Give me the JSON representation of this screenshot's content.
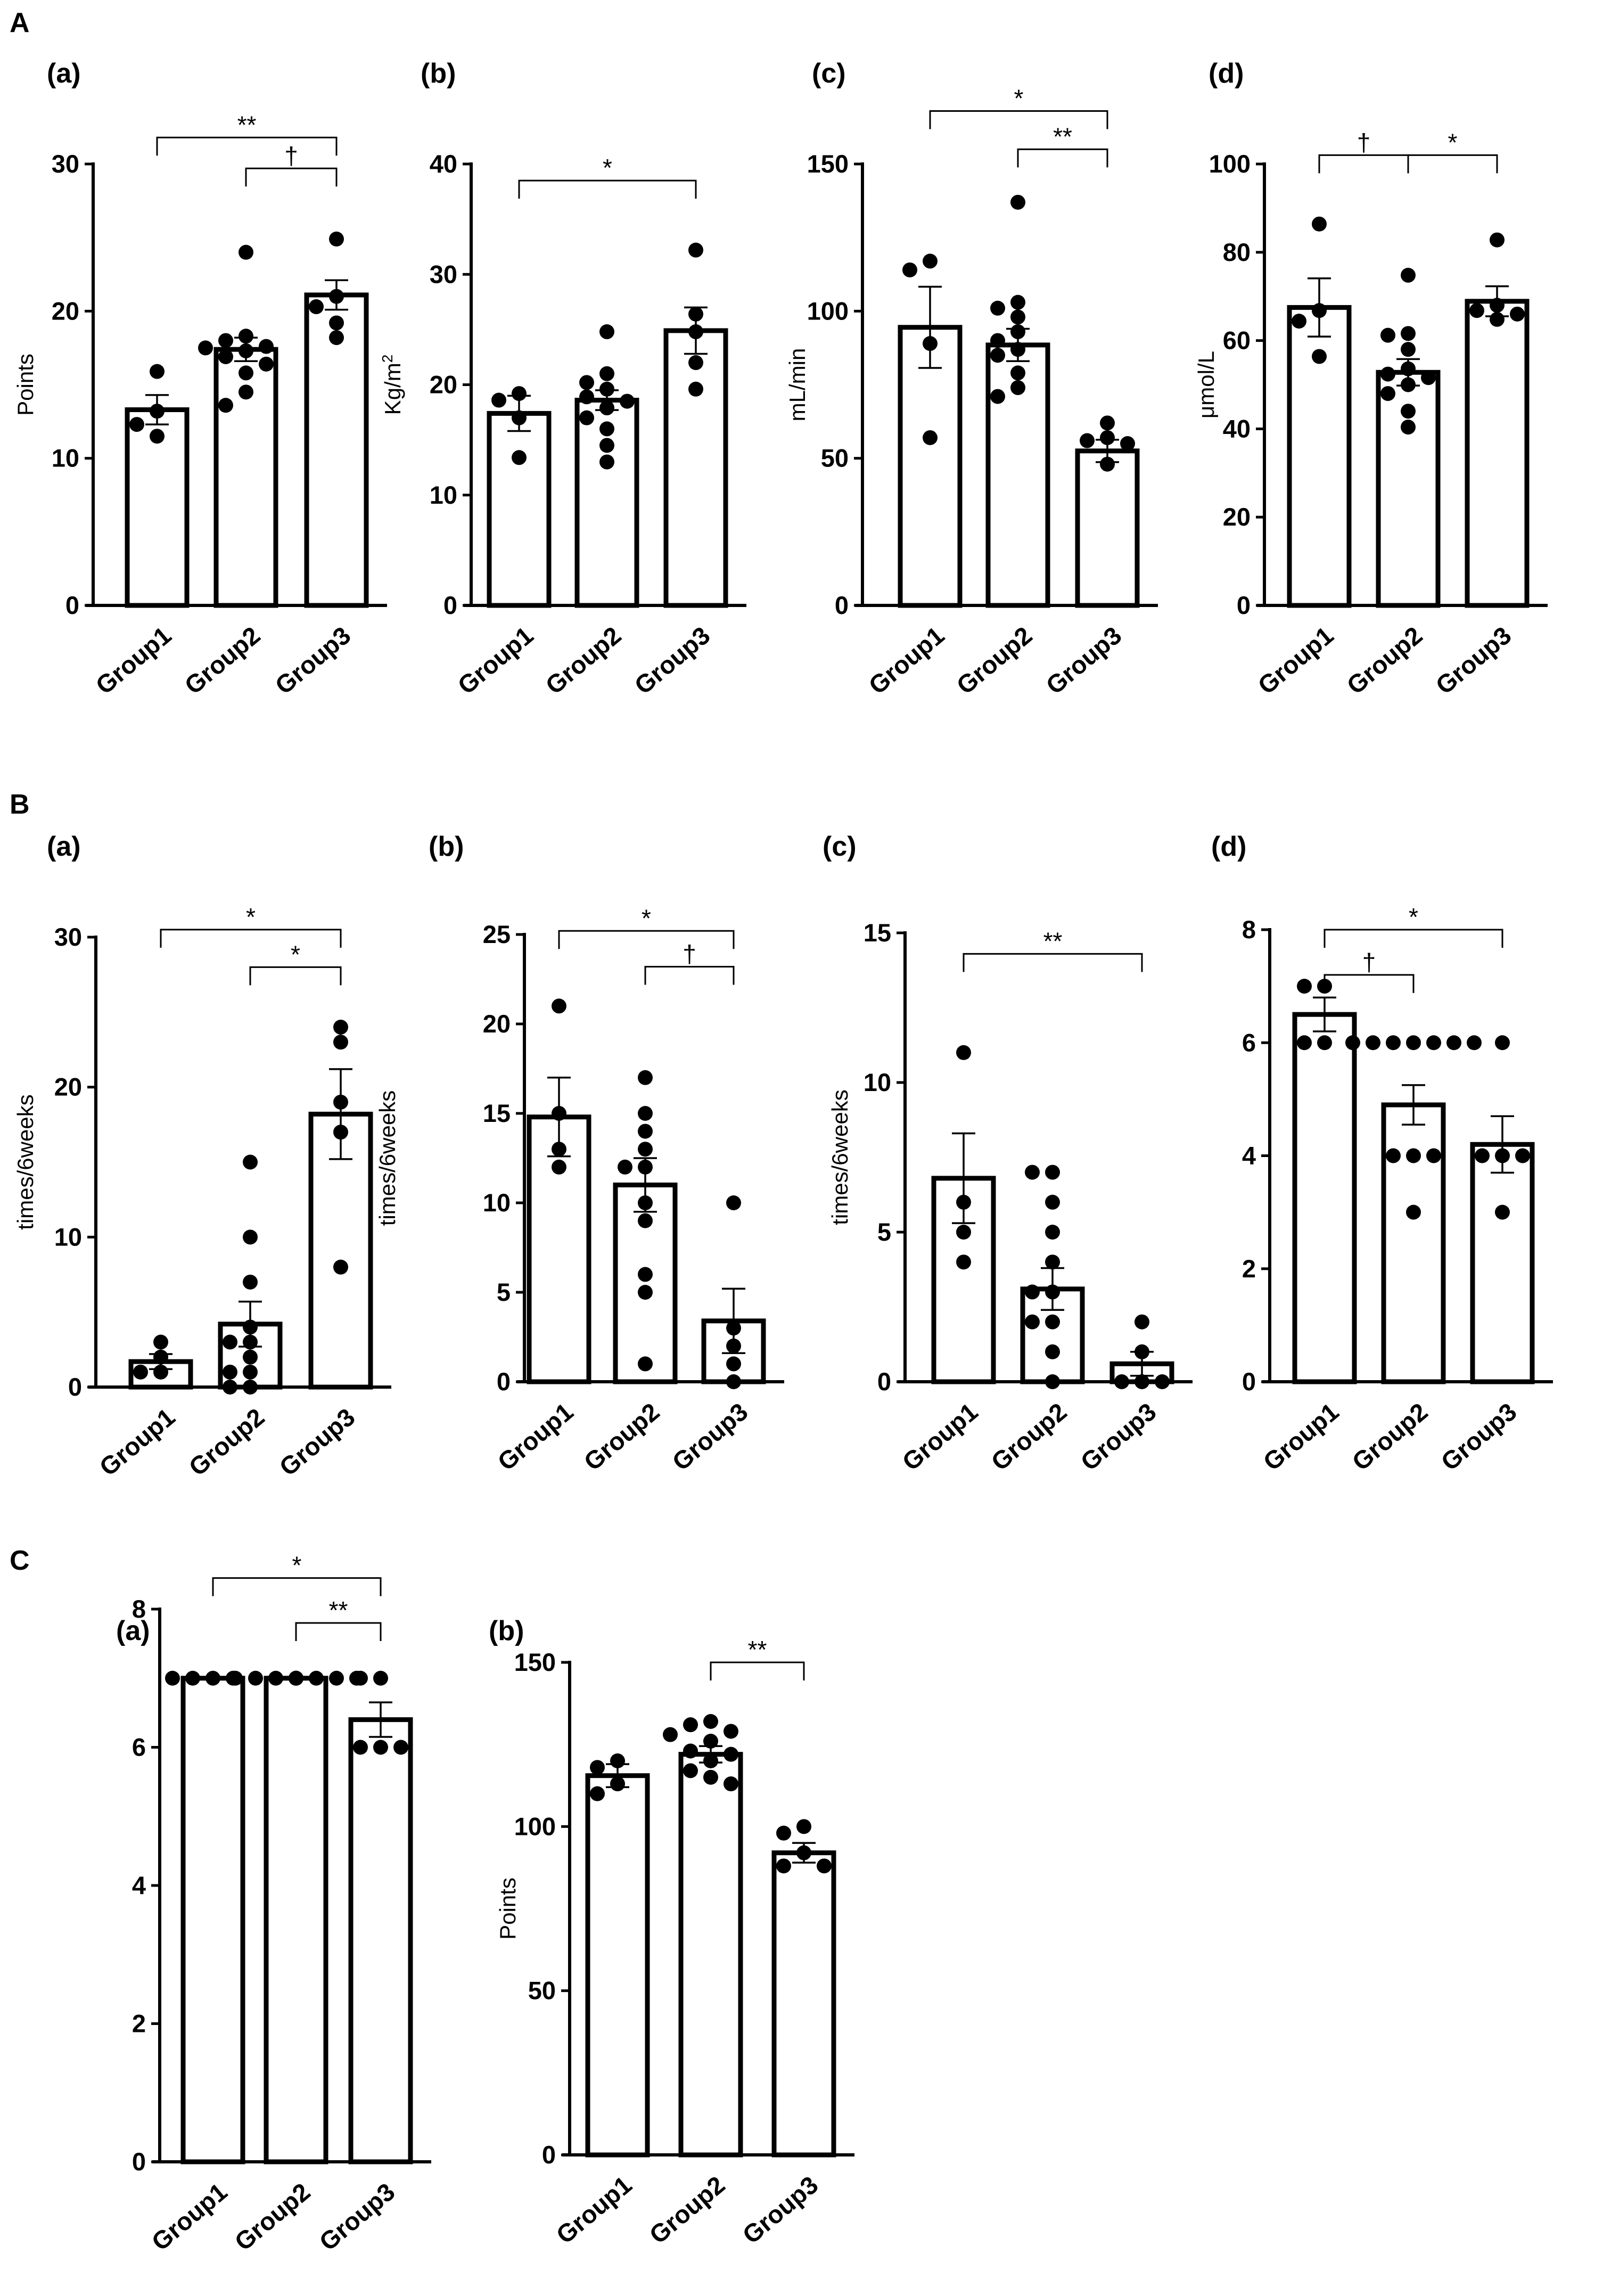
{
  "sections": [
    "A",
    "B",
    "C"
  ],
  "chart_data": [
    {
      "id": "Aa",
      "section": "A",
      "panel": "(a)",
      "type": "bar",
      "ylabel": "Points",
      "ylim": [
        0,
        30
      ],
      "ticks": [
        0,
        10,
        20,
        30
      ],
      "categories": [
        "Group1",
        "Group2",
        "Group3"
      ],
      "values": [
        13.3,
        17.4,
        21.1
      ],
      "sem": [
        1.0,
        0.8,
        1.0
      ],
      "points": [
        [
          15.9,
          13.2,
          12.3,
          11.5
        ],
        [
          24.0,
          18.3,
          18.0,
          17.6,
          17.5,
          17.3,
          16.9,
          16.4,
          15.8,
          14.5,
          13.6
        ],
        [
          24.9,
          21.0,
          20.3,
          19.2,
          18.2
        ]
      ],
      "significance": [
        {
          "from": 0,
          "to": 2,
          "label": "**",
          "level": 31.8
        },
        {
          "from": 1,
          "to": 2,
          "label": "†",
          "level": 29.7
        }
      ]
    },
    {
      "id": "Ab",
      "section": "A",
      "panel": "(b)",
      "type": "bar",
      "ylabel": "Kg/m",
      "ylabel_sup": "2",
      "ylim": [
        0,
        40
      ],
      "ticks": [
        0,
        10,
        20,
        30,
        40
      ],
      "categories": [
        "Group1",
        "Group2",
        "Group3"
      ],
      "values": [
        17.4,
        18.6,
        24.9
      ],
      "sem": [
        1.6,
        0.9,
        2.1
      ],
      "points": [
        [
          19.2,
          18.6,
          17.0,
          13.4
        ],
        [
          24.8,
          21.0,
          20.2,
          19.6,
          18.9,
          18.5,
          17.9,
          17.0,
          16.0,
          14.5,
          13.0
        ],
        [
          32.2,
          26.4,
          24.8,
          22.0,
          19.6
        ]
      ],
      "significance": [
        {
          "from": 0,
          "to": 2,
          "label": "*",
          "level": 38.5
        }
      ]
    },
    {
      "id": "Ac",
      "section": "A",
      "panel": "(c)",
      "type": "bar",
      "ylabel": "mL/min",
      "ylim": [
        0,
        150
      ],
      "ticks": [
        0,
        50,
        100,
        150
      ],
      "categories": [
        "Group1",
        "Group2",
        "Group3"
      ],
      "values": [
        94.5,
        88.5,
        52.5
      ],
      "sem": [
        13.8,
        5.5,
        3.8
      ],
      "points": [
        [
          117,
          114,
          89,
          57
        ],
        [
          137,
          103,
          101,
          98,
          93,
          90,
          87,
          85,
          79,
          74,
          71
        ],
        [
          62,
          57,
          56,
          55,
          48
        ]
      ],
      "significance": [
        {
          "from": 0,
          "to": 2,
          "label": "*",
          "level": 168
        },
        {
          "from": 1,
          "to": 2,
          "label": "**",
          "level": 155
        }
      ]
    },
    {
      "id": "Ad",
      "section": "A",
      "panel": "(d)",
      "type": "bar",
      "ylabel": "μmol/L",
      "ylim": [
        0,
        100
      ],
      "ticks": [
        0,
        20,
        40,
        60,
        80,
        100
      ],
      "categories": [
        "Group1",
        "Group2",
        "Group3"
      ],
      "values": [
        67.5,
        52.8,
        68.9
      ],
      "sem": [
        6.6,
        3.0,
        3.4
      ],
      "points": [
        [
          86.4,
          66.8,
          64.4,
          56.4
        ],
        [
          74.8,
          61.6,
          61.2,
          58.0,
          53.6,
          52.4,
          51.6,
          50.0,
          48.0,
          44.0,
          40.4
        ],
        [
          82.8,
          68.0,
          66.8,
          66.0,
          64.8
        ]
      ],
      "significance": [
        {
          "from": 0,
          "to": 1,
          "label": "†",
          "level": 102
        },
        {
          "from": 1,
          "to": 2,
          "label": "*",
          "level": 102
        }
      ]
    },
    {
      "id": "Ba",
      "section": "B",
      "panel": "(a)",
      "type": "bar",
      "ylabel": "times/6weeks",
      "ylim": [
        0,
        30
      ],
      "ticks": [
        0,
        10,
        20,
        30
      ],
      "categories": [
        "Group1",
        "Group2",
        "Group3"
      ],
      "values": [
        1.7,
        4.2,
        18.2
      ],
      "sem": [
        0.5,
        1.5,
        3.0
      ],
      "points": [
        [
          3,
          2,
          1,
          1
        ],
        [
          15,
          10,
          7,
          4,
          3,
          3,
          2,
          1,
          1,
          0,
          0
        ],
        [
          24,
          23,
          19,
          17,
          8
        ]
      ],
      "significance": [
        {
          "from": 0,
          "to": 2,
          "label": "*",
          "level": 30.5
        },
        {
          "from": 1,
          "to": 2,
          "label": "*",
          "level": 28.0
        }
      ]
    },
    {
      "id": "Bb",
      "section": "B",
      "panel": "(b)",
      "type": "bar",
      "ylabel": "times/6weeks",
      "ylim": [
        0,
        25
      ],
      "ticks": [
        0,
        5,
        10,
        15,
        20,
        25
      ],
      "categories": [
        "Group1",
        "Group2",
        "Group3"
      ],
      "values": [
        14.8,
        11.0,
        3.4
      ],
      "sem": [
        2.2,
        1.5,
        1.8
      ],
      "points": [
        [
          21,
          15,
          13,
          12
        ],
        [
          17,
          15,
          14,
          13,
          12,
          12,
          10,
          9,
          6,
          5,
          1
        ],
        [
          10,
          3,
          2,
          1,
          0
        ]
      ],
      "significance": [
        {
          "from": 0,
          "to": 2,
          "label": "*",
          "level": 25.2
        },
        {
          "from": 1,
          "to": 2,
          "label": "†",
          "level": 23.2
        }
      ]
    },
    {
      "id": "Bc",
      "section": "B",
      "panel": "(c)",
      "type": "bar",
      "ylabel": "times/6weeks",
      "ylim": [
        0,
        15
      ],
      "ticks": [
        0,
        5,
        10,
        15
      ],
      "categories": [
        "Group1",
        "Group2",
        "Group3"
      ],
      "values": [
        6.8,
        3.1,
        0.6
      ],
      "sem": [
        1.5,
        0.7,
        0.4
      ],
      "points": [
        [
          11,
          6,
          5,
          4
        ],
        [
          7,
          7,
          6,
          5,
          4,
          3,
          3,
          2,
          2,
          1,
          0
        ],
        [
          2,
          1,
          0,
          0,
          0
        ]
      ],
      "significance": [
        {
          "from": 0,
          "to": 2,
          "label": "**",
          "level": 14.3
        }
      ]
    },
    {
      "id": "Bd",
      "section": "B",
      "panel": "(d)",
      "type": "bar",
      "ylabel": "",
      "ylim": [
        0,
        8
      ],
      "ticks": [
        0,
        2,
        4,
        6,
        8
      ],
      "categories": [
        "Group1",
        "Group2",
        "Group3"
      ],
      "values": [
        6.5,
        4.9,
        4.2
      ],
      "sem": [
        0.3,
        0.35,
        0.5
      ],
      "points": [
        [
          7,
          7,
          6,
          6
        ],
        [
          6,
          6,
          6,
          6,
          6,
          6,
          6,
          4,
          4,
          4,
          3
        ],
        [
          6,
          4,
          4,
          4,
          3
        ]
      ],
      "significance": [
        {
          "from": 0,
          "to": 2,
          "label": "*",
          "level": 8.0
        },
        {
          "from": 0,
          "to": 1,
          "label": "†",
          "level": 7.2
        }
      ]
    },
    {
      "id": "Ca",
      "section": "C",
      "panel": "(a)",
      "type": "bar",
      "ylabel": "",
      "ylim": [
        0,
        8
      ],
      "ticks": [
        0,
        2,
        4,
        6,
        8
      ],
      "categories": [
        "Group1",
        "Group2",
        "Group3"
      ],
      "values": [
        7.0,
        7.0,
        6.4
      ],
      "sem": [
        0,
        0,
        0.25
      ],
      "points": [
        [
          7,
          7,
          7,
          7
        ],
        [
          7,
          7,
          7,
          7,
          7,
          7,
          7,
          7,
          7,
          7,
          7
        ],
        [
          7,
          7,
          6,
          6,
          6
        ]
      ],
      "significance": [
        {
          "from": 0,
          "to": 2,
          "label": "*",
          "level": 8.45
        },
        {
          "from": 1,
          "to": 2,
          "label": "**",
          "level": 7.8
        }
      ]
    },
    {
      "id": "Cb",
      "section": "C",
      "panel": "(b)",
      "type": "bar",
      "ylabel": "Points",
      "ylim": [
        0,
        150
      ],
      "ticks": [
        0,
        50,
        100,
        150
      ],
      "categories": [
        "Group1",
        "Group2",
        "Group3"
      ],
      "values": [
        115.5,
        122.0,
        92.0
      ],
      "sem": [
        3.5,
        2.5,
        3.0
      ],
      "points": [
        [
          120,
          118,
          113,
          110
        ],
        [
          132,
          131,
          129,
          128,
          126,
          123,
          122,
          120,
          117,
          115,
          113
        ],
        [
          100,
          98,
          92,
          88,
          88
        ]
      ],
      "significance": [
        {
          "from": 1,
          "to": 2,
          "label": "**",
          "level": 150
        }
      ]
    }
  ]
}
